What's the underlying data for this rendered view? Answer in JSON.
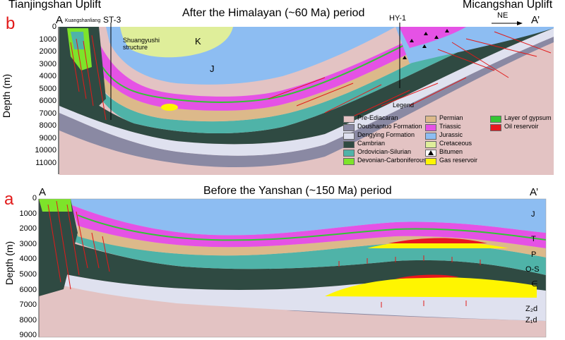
{
  "panel_b": {
    "letter": "b",
    "title": "After the Himalayan (~60 Ma) period",
    "left_uplift": "Tianjingshan Uplift",
    "right_uplift": "Micangshan Uplift",
    "end_left": "A",
    "end_right": "A’",
    "place_kuang": "Kuangshanliang",
    "well_st3": "ST-3",
    "well_hy1": "HY-1",
    "direction": "NE",
    "structure": "Shuangyushi structure",
    "unit_k": "K",
    "unit_j": "J",
    "ylabel": "Depth (m)",
    "yticks": [
      "0",
      "1000",
      "2000",
      "3000",
      "4000",
      "5000",
      "6000",
      "7000",
      "8000",
      "9000",
      "10000",
      "11000"
    ]
  },
  "legend": {
    "title": "Legend",
    "items": [
      {
        "label": "Pre-Ediacaran",
        "color": "#e3c3c3"
      },
      {
        "label": "Doushantuo Formation",
        "color": "#8a89a3"
      },
      {
        "label": "Dengying Formation",
        "color": "#dfe1ef"
      },
      {
        "label": "Cambrian",
        "color": "#2f4a42"
      },
      {
        "label": "Ordovician-Silurian",
        "color": "#4fb3a8"
      },
      {
        "label": "Devonian-Carboniferous",
        "color": "#7de42a"
      },
      {
        "label": "Permian",
        "color": "#dcb98a"
      },
      {
        "label": "Triassic",
        "color": "#e552e5"
      },
      {
        "label": "Jurassic",
        "color": "#8dbdf2"
      },
      {
        "label": "Cretaceous",
        "color": "#dfee9a"
      },
      {
        "label": "Bitumen",
        "color": "#000000"
      },
      {
        "label": "Gas reservoir",
        "color": "#fff500"
      },
      {
        "label": "Layer of gypsum",
        "color": "#34c534"
      },
      {
        "label": "Oil reservoir",
        "color": "#e8161e"
      }
    ]
  },
  "panel_a": {
    "letter": "a",
    "title": "Before the Yanshan (~150 Ma) period",
    "end_left": "A",
    "end_right": "A’",
    "ylabel": "Depth (m)",
    "yticks": [
      "0",
      "1000",
      "2000",
      "3000",
      "4000",
      "5000",
      "6000",
      "7000",
      "8000",
      "9000"
    ],
    "units": [
      "J",
      "T",
      "P",
      "O-S",
      "∈",
      "Z₂d",
      "Z₁d"
    ]
  }
}
